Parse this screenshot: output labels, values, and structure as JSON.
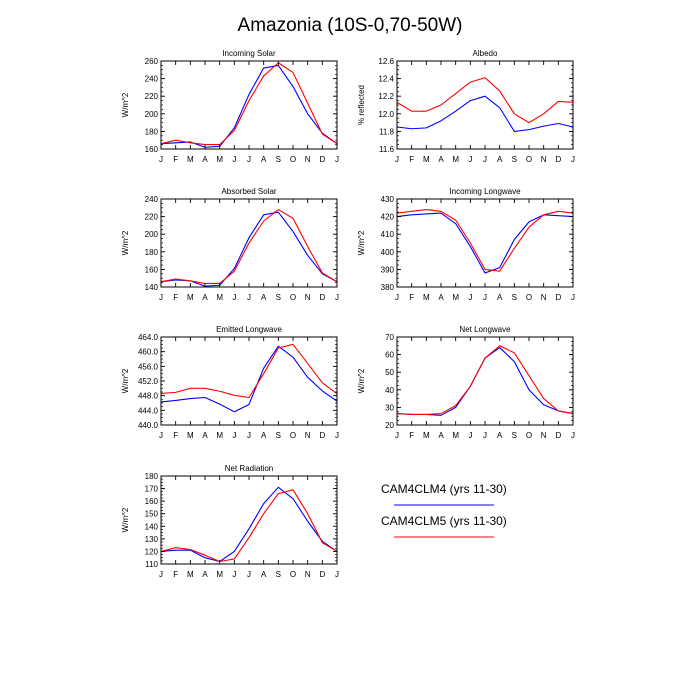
{
  "figure": {
    "title": "Amazonia (10S-0,70-50W)",
    "legend": [
      {
        "label": "CAM4CLM4 (yrs 11-30)",
        "color": "#0000ff"
      },
      {
        "label": "CAM4CLM5 (yrs 11-30)",
        "color": "#ff0000"
      }
    ]
  },
  "chart_data": [
    {
      "id": "incoming-solar",
      "type": "line",
      "title": "Incoming Solar",
      "ylabel": "W/m^2",
      "categories": [
        "J",
        "F",
        "M",
        "A",
        "M",
        "J",
        "J",
        "A",
        "S",
        "O",
        "N",
        "D",
        "J"
      ],
      "ylim": [
        160,
        260
      ],
      "yticks": [
        160,
        180,
        200,
        220,
        240,
        260
      ],
      "yticklabels": [
        "160",
        "180",
        "200",
        "220",
        "240",
        "260"
      ],
      "series": [
        {
          "name": "CAM4CLM4 (yrs 11-30)",
          "color": "#0000ff",
          "values": [
            166,
            167,
            168,
            162,
            163,
            184,
            222,
            252,
            255,
            231,
            200,
            178,
            166
          ]
        },
        {
          "name": "CAM4CLM5 (yrs 11-30)",
          "color": "#ff0000",
          "values": [
            166,
            170,
            167,
            165,
            165,
            181,
            215,
            243,
            258,
            247,
            212,
            177,
            166
          ]
        }
      ]
    },
    {
      "id": "albedo",
      "type": "line",
      "title": "Albedo",
      "ylabel": "% reflected",
      "categories": [
        "J",
        "F",
        "M",
        "A",
        "M",
        "J",
        "J",
        "A",
        "S",
        "O",
        "N",
        "D",
        "J"
      ],
      "ylim": [
        11.6,
        12.6
      ],
      "yticks": [
        11.6,
        11.8,
        12.0,
        12.2,
        12.4,
        12.6
      ],
      "yticklabels": [
        "11.6",
        "11.8",
        "12.0",
        "12.2",
        "12.4",
        "12.6"
      ],
      "series": [
        {
          "name": "CAM4CLM4 (yrs 11-30)",
          "color": "#0000ff",
          "values": [
            11.85,
            11.83,
            11.84,
            11.92,
            12.03,
            12.15,
            12.2,
            12.07,
            11.8,
            11.82,
            11.86,
            11.89,
            11.85
          ]
        },
        {
          "name": "CAM4CLM5 (yrs 11-30)",
          "color": "#ff0000",
          "values": [
            12.13,
            12.03,
            12.03,
            12.1,
            12.23,
            12.36,
            12.41,
            12.26,
            12.0,
            11.9,
            12.0,
            12.14,
            12.13
          ]
        }
      ]
    },
    {
      "id": "absorbed-solar",
      "type": "line",
      "title": "Absorbed Solar",
      "ylabel": "W/m^2",
      "categories": [
        "J",
        "F",
        "M",
        "A",
        "M",
        "J",
        "J",
        "A",
        "S",
        "O",
        "N",
        "D",
        "J"
      ],
      "ylim": [
        140,
        240
      ],
      "yticks": [
        140,
        160,
        180,
        200,
        220,
        240
      ],
      "yticklabels": [
        "140",
        "160",
        "180",
        "200",
        "220",
        "240"
      ],
      "series": [
        {
          "name": "CAM4CLM4 (yrs 11-30)",
          "color": "#0000ff",
          "values": [
            146,
            148,
            147,
            141,
            142,
            161,
            196,
            222,
            225,
            203,
            176,
            155,
            146
          ]
        },
        {
          "name": "CAM4CLM5 (yrs 11-30)",
          "color": "#ff0000",
          "values": [
            146,
            149,
            147,
            144,
            144,
            158,
            190,
            215,
            228,
            218,
            186,
            156,
            146
          ]
        }
      ]
    },
    {
      "id": "incoming-longwave",
      "type": "line",
      "title": "Incoming Longwave",
      "ylabel": "W/m^2",
      "categories": [
        "J",
        "F",
        "M",
        "A",
        "M",
        "J",
        "J",
        "A",
        "S",
        "O",
        "N",
        "D",
        "J"
      ],
      "ylim": [
        380,
        430
      ],
      "yticks": [
        380,
        390,
        400,
        410,
        420,
        430
      ],
      "yticklabels": [
        "380",
        "390",
        "400",
        "410",
        "420",
        "430"
      ],
      "series": [
        {
          "name": "CAM4CLM4 (yrs 11-30)",
          "color": "#0000ff",
          "values": [
            420,
            421,
            421.5,
            422,
            416,
            403,
            388,
            391,
            407,
            417,
            421,
            420.5,
            420
          ]
        },
        {
          "name": "CAM4CLM5 (yrs 11-30)",
          "color": "#ff0000",
          "values": [
            422,
            423,
            424,
            423,
            418,
            405,
            390,
            389,
            402,
            414,
            421,
            423,
            422
          ]
        }
      ]
    },
    {
      "id": "emitted-longwave",
      "type": "line",
      "title": "Emitted Longwave",
      "ylabel": "W/m^2",
      "categories": [
        "J",
        "F",
        "M",
        "A",
        "M",
        "J",
        "J",
        "A",
        "S",
        "O",
        "N",
        "D",
        "J"
      ],
      "ylim": [
        440,
        464
      ],
      "yticks": [
        440,
        444,
        448,
        452,
        456,
        460,
        464
      ],
      "yticklabels": [
        "440.0",
        "444.0",
        "448.0",
        "452.0",
        "456.0",
        "460.0",
        "464.0"
      ],
      "series": [
        {
          "name": "CAM4CLM4 (yrs 11-30)",
          "color": "#0000ff",
          "values": [
            446.3,
            446.7,
            447.2,
            447.5,
            445.7,
            443.6,
            445.6,
            455.5,
            461.5,
            458.5,
            453,
            449.3,
            446.5
          ]
        },
        {
          "name": "CAM4CLM5 (yrs 11-30)",
          "color": "#ff0000",
          "values": [
            448.6,
            448.9,
            450,
            450,
            449.2,
            448.1,
            447.5,
            454,
            461,
            462,
            456.8,
            451.5,
            448.5
          ]
        }
      ]
    },
    {
      "id": "net-longwave",
      "type": "line",
      "title": "Net Longwave",
      "ylabel": "W/m^2",
      "categories": [
        "J",
        "F",
        "M",
        "A",
        "M",
        "J",
        "J",
        "A",
        "S",
        "O",
        "N",
        "D",
        "J"
      ],
      "ylim": [
        20,
        70
      ],
      "yticks": [
        20,
        30,
        40,
        50,
        60,
        70
      ],
      "yticklabels": [
        "20",
        "30",
        "40",
        "50",
        "60",
        "70"
      ],
      "series": [
        {
          "name": "CAM4CLM4 (yrs 11-30)",
          "color": "#0000ff",
          "values": [
            26.5,
            26,
            26,
            25.5,
            30,
            42,
            58,
            64,
            56,
            40,
            31.5,
            28,
            26.5
          ]
        },
        {
          "name": "CAM4CLM5 (yrs 11-30)",
          "color": "#ff0000",
          "values": [
            26.5,
            26,
            26,
            26.5,
            31,
            42,
            58,
            65,
            61,
            48,
            35,
            28,
            26.5
          ]
        }
      ]
    },
    {
      "id": "net-radiation",
      "type": "line",
      "title": "Net Radiation",
      "ylabel": "W/m^2",
      "categories": [
        "J",
        "F",
        "M",
        "A",
        "M",
        "J",
        "J",
        "A",
        "S",
        "O",
        "N",
        "D",
        "J"
      ],
      "ylim": [
        110,
        180
      ],
      "yticks": [
        110,
        120,
        130,
        140,
        150,
        160,
        170,
        180
      ],
      "yticklabels": [
        "110",
        "120",
        "130",
        "140",
        "150",
        "160",
        "170",
        "180"
      ],
      "series": [
        {
          "name": "CAM4CLM4 (yrs 11-30)",
          "color": "#0000ff",
          "values": [
            120,
            121,
            121,
            115,
            112,
            120,
            138,
            158,
            171,
            162,
            144,
            128,
            120
          ]
        },
        {
          "name": "CAM4CLM5 (yrs 11-30)",
          "color": "#ff0000",
          "values": [
            120,
            123,
            121.5,
            117,
            112,
            114,
            131,
            150,
            166,
            169,
            150,
            127,
            120
          ]
        }
      ]
    }
  ]
}
